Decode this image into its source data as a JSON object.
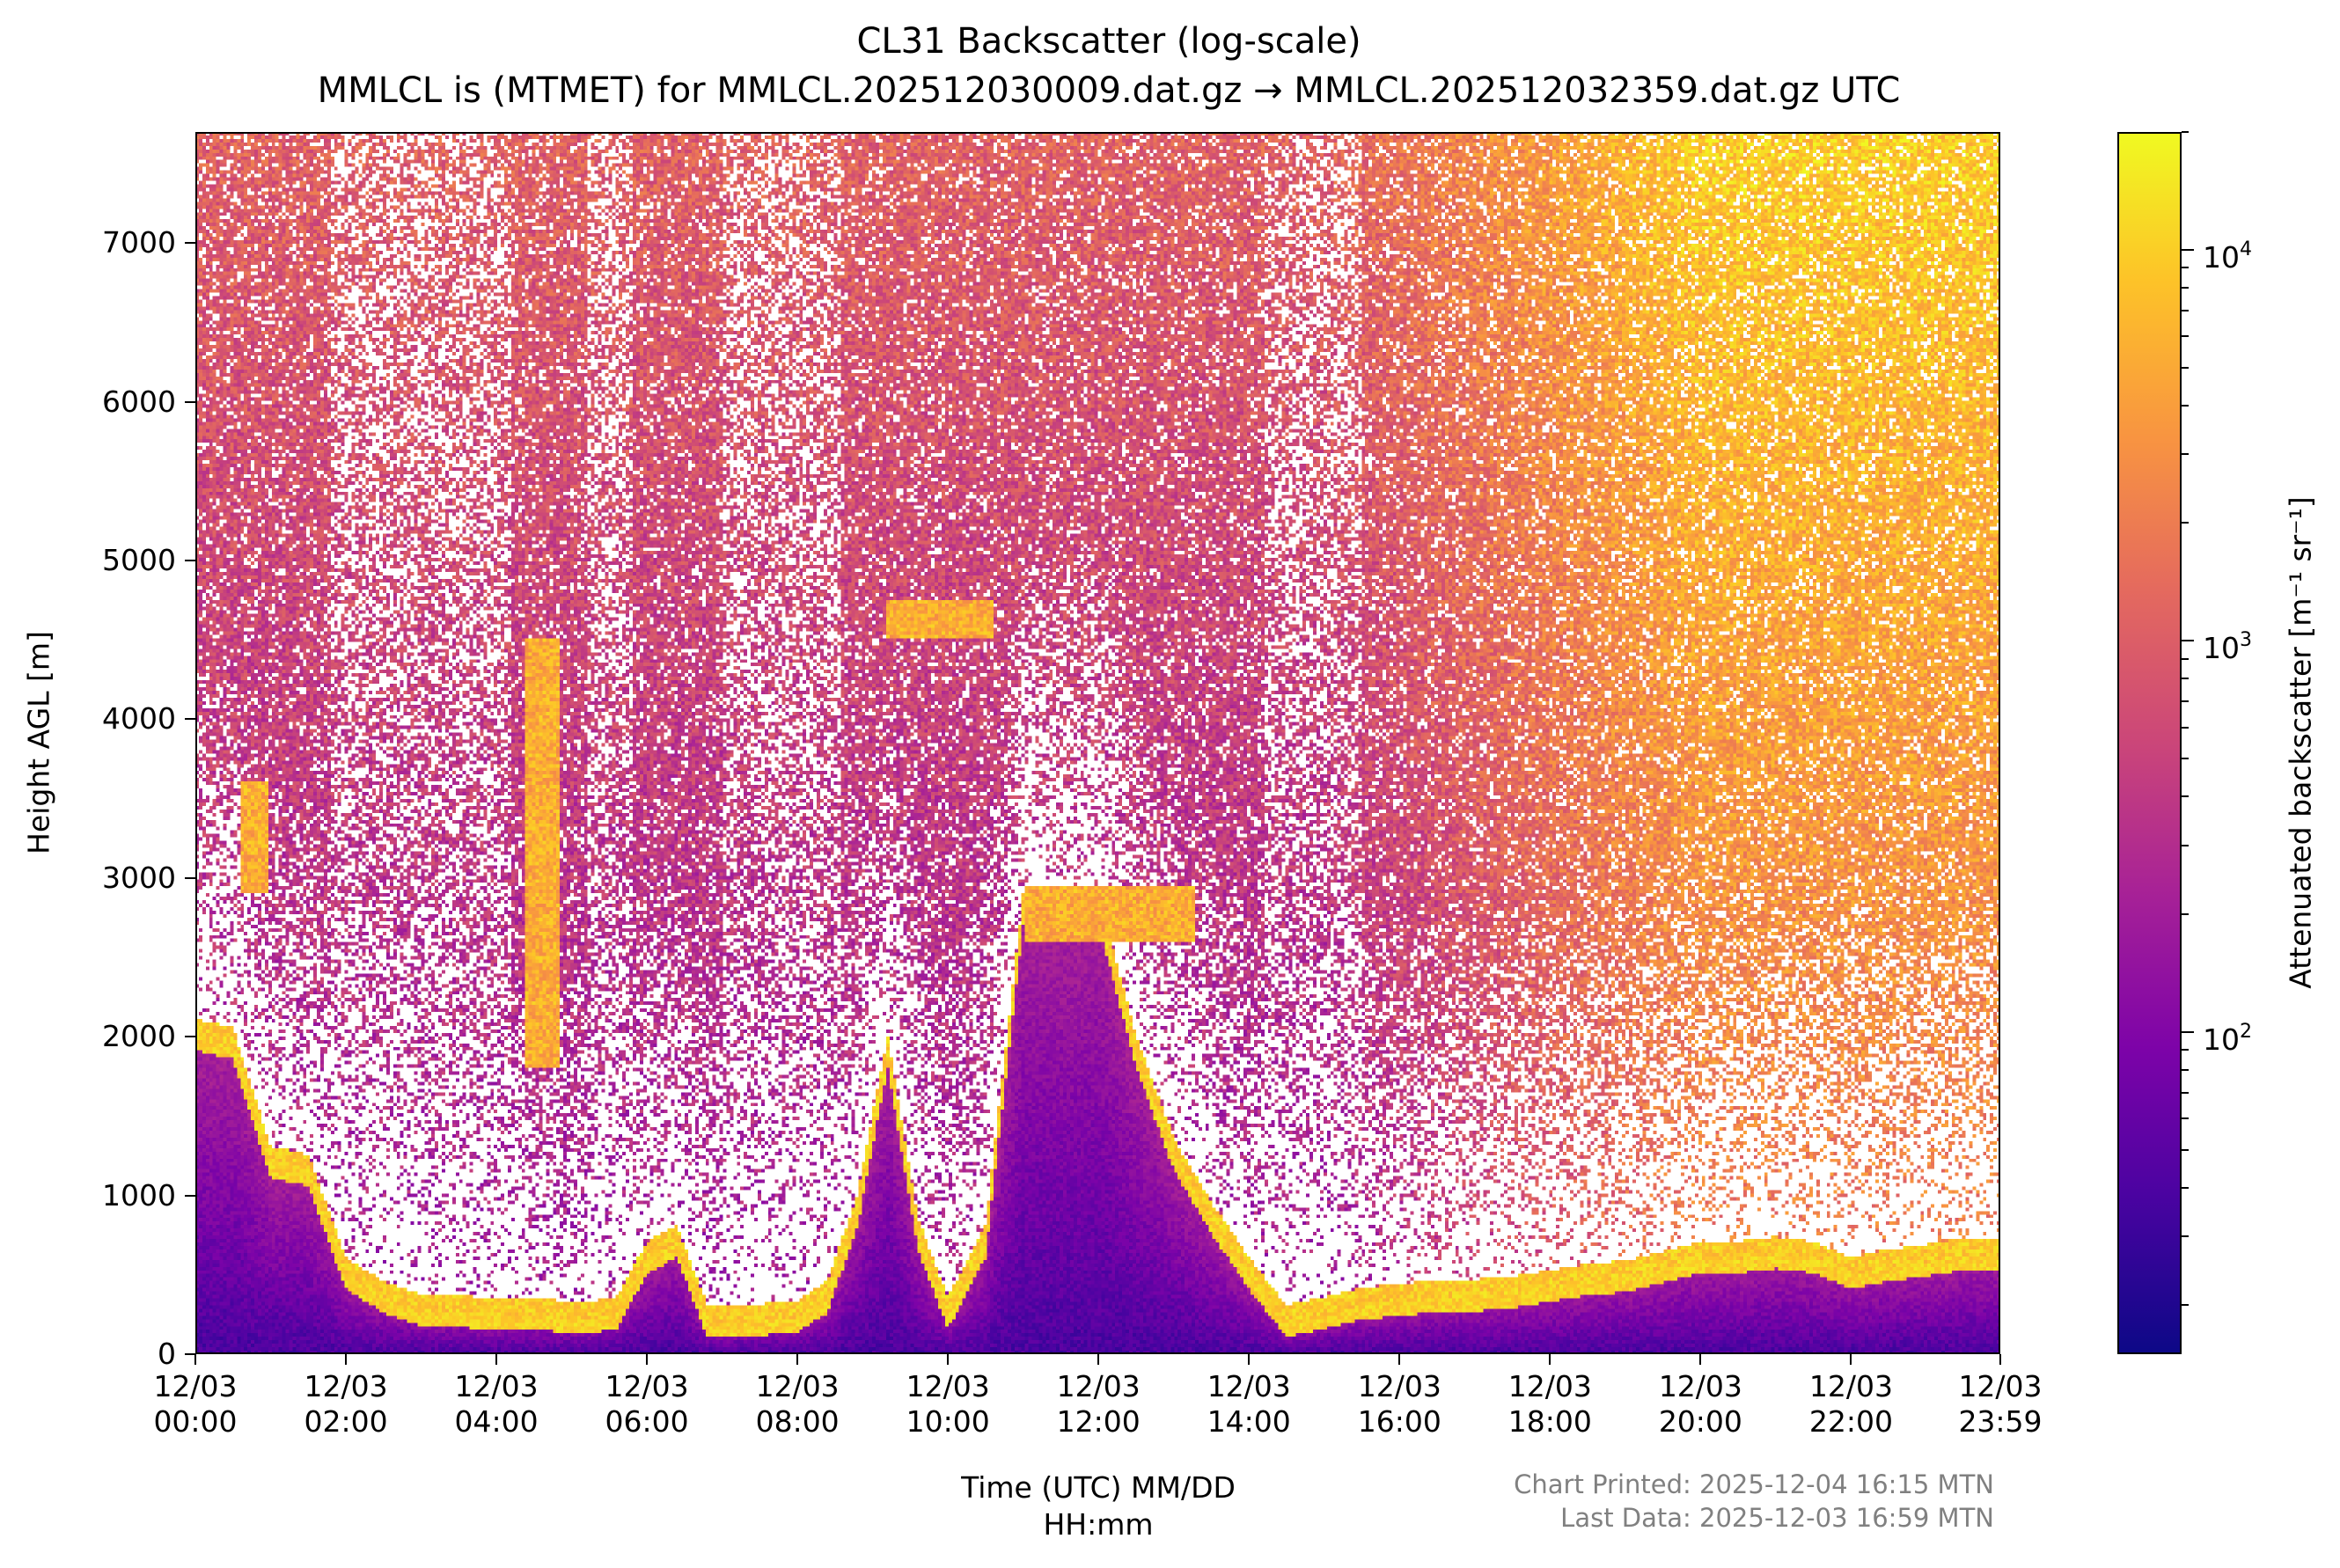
{
  "chart_data": {
    "type": "heatmap",
    "title": "CL31 Backscatter (log-scale)",
    "subtitle": "MMLCL is (MTMET) for MMLCL.202512030009.dat.gz → MMLCL.202512032359.dat.gz UTC",
    "xlabel": "Time (UTC) MM/DD\nHH:mm",
    "ylabel": "Height AGL [m]",
    "x_ticks": [
      "12/03\n00:00",
      "12/03\n02:00",
      "12/03\n04:00",
      "12/03\n06:00",
      "12/03\n08:00",
      "12/03\n10:00",
      "12/03\n12:00",
      "12/03\n14:00",
      "12/03\n16:00",
      "12/03\n18:00",
      "12/03\n20:00",
      "12/03\n22:00",
      "12/03\n23:59"
    ],
    "x_tick_hours": [
      0,
      2,
      4,
      6,
      8,
      10,
      12,
      14,
      16,
      18,
      20,
      22,
      23.983
    ],
    "xlim_hours": [
      0,
      23.983
    ],
    "y_ticks": [
      "0",
      "1000",
      "2000",
      "3000",
      "4000",
      "5000",
      "6000",
      "7000"
    ],
    "y_tick_values": [
      0,
      1000,
      2000,
      3000,
      4000,
      5000,
      6000,
      7000
    ],
    "ylim": [
      0,
      7700
    ],
    "colorbar": {
      "label": "Attenuated backscatter [m⁻¹ sr⁻¹]",
      "scale": "log",
      "colormap": "plasma",
      "range": [
        15,
        20000
      ],
      "ticks": [
        100,
        1000,
        10000
      ],
      "tick_base": "10",
      "tick_exponents": [
        "2",
        "3",
        "4"
      ]
    },
    "features": {
      "boundary_layer_top_m": [
        [
          0,
          2000
        ],
        [
          0.5,
          1950
        ],
        [
          1.0,
          1200
        ],
        [
          1.5,
          1150
        ],
        [
          2.0,
          500
        ],
        [
          2.5,
          350
        ],
        [
          3.0,
          270
        ],
        [
          3.5,
          260
        ],
        [
          4.0,
          240
        ],
        [
          4.4,
          250
        ],
        [
          4.8,
          230
        ],
        [
          5.2,
          220
        ],
        [
          5.6,
          250
        ],
        [
          6.0,
          600
        ],
        [
          6.4,
          700
        ],
        [
          6.8,
          200
        ],
        [
          7.2,
          200
        ],
        [
          7.6,
          210
        ],
        [
          8.0,
          230
        ],
        [
          8.4,
          350
        ],
        [
          8.8,
          900
        ],
        [
          9.2,
          1900
        ],
        [
          9.6,
          750
        ],
        [
          10.0,
          250
        ],
        [
          10.5,
          700
        ],
        [
          11.0,
          2800
        ],
        [
          11.5,
          2700
        ],
        [
          12.0,
          2800
        ],
        [
          12.5,
          1900
        ],
        [
          13.0,
          1250
        ],
        [
          13.5,
          850
        ],
        [
          14.0,
          500
        ],
        [
          14.5,
          200
        ],
        [
          15.0,
          250
        ],
        [
          15.5,
          310
        ],
        [
          16.0,
          330
        ],
        [
          16.5,
          360
        ],
        [
          17.0,
          360
        ],
        [
          17.5,
          380
        ],
        [
          18.0,
          420
        ],
        [
          18.5,
          460
        ],
        [
          19.0,
          480
        ],
        [
          19.5,
          540
        ],
        [
          20.0,
          600
        ],
        [
          20.5,
          600
        ],
        [
          21.0,
          630
        ],
        [
          21.5,
          600
        ],
        [
          22.0,
          500
        ],
        [
          22.5,
          550
        ],
        [
          23.0,
          580
        ],
        [
          23.5,
          620
        ],
        [
          23.98,
          620
        ]
      ],
      "cloud_layers": [
        {
          "t0": 9.2,
          "t1": 10.6,
          "top_m": 4750,
          "bottom_m": 4500
        },
        {
          "t0": 11.0,
          "t1": 13.3,
          "top_m": 2950,
          "bottom_m": 2600
        },
        {
          "t0": 0.6,
          "t1": 0.95,
          "top_m": 3600,
          "bottom_m": 2900
        },
        {
          "t0": 4.4,
          "t1": 4.85,
          "top_m": 4500,
          "bottom_m": 1800
        }
      ]
    },
    "footer": {
      "printed": "Chart Printed: 2025-12-04 16:15 MTN",
      "last_data": "Last Data: 2025-12-03 16:59 MTN"
    }
  }
}
